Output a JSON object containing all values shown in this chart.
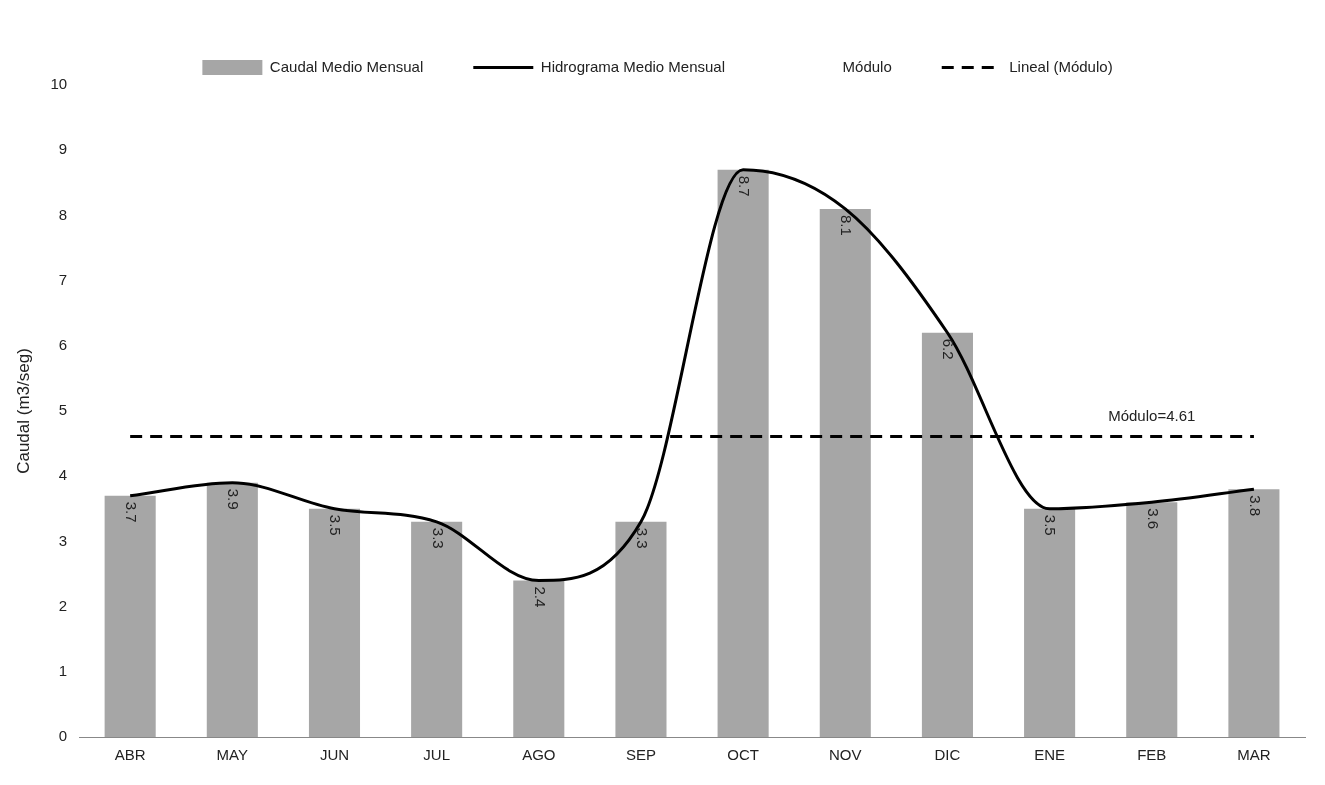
{
  "chart_data": {
    "type": "bar",
    "ylabel": "Caudal (m3/seg)",
    "categories": [
      "ABR",
      "MAY",
      "JUN",
      "JUL",
      "AGO",
      "SEP",
      "OCT",
      "NOV",
      "DIC",
      "ENE",
      "FEB",
      "MAR"
    ],
    "series": [
      {
        "name": "Caudal Medio Mensual",
        "color": "#a6a6a6",
        "values": [
          3.7,
          3.9,
          3.5,
          3.3,
          2.4,
          3.3,
          8.7,
          8.1,
          6.2,
          3.5,
          3.6,
          3.8
        ],
        "value_labels": [
          "3.7",
          "3.9",
          "3.5",
          "3.3",
          "2.4",
          "3.3",
          "8.7",
          "8.1",
          "6.2",
          "3.5",
          "3.6",
          "3.8"
        ]
      },
      {
        "name": "Hidrograma Medio Mensual",
        "type": "line",
        "color": "#000000",
        "line_style": "solid",
        "values": [
          3.7,
          3.9,
          3.5,
          3.3,
          2.4,
          3.3,
          8.7,
          8.1,
          6.2,
          3.5,
          3.6,
          3.8
        ]
      },
      {
        "name": "Lineal (Módulo)",
        "type": "line",
        "color": "#000000",
        "line_style": "dashed",
        "values": [
          4.61,
          4.61,
          4.61,
          4.61,
          4.61,
          4.61,
          4.61,
          4.61,
          4.61,
          4.61,
          4.61,
          4.61
        ]
      }
    ],
    "annotations": [
      "Módulo",
      {
        "text": "Módulo=4.61",
        "x": "FEB",
        "y": 4.61
      }
    ],
    "ylim": [
      0,
      10
    ],
    "yticks": [
      0,
      1,
      2,
      3,
      4,
      5,
      6,
      7,
      8,
      9,
      10
    ],
    "grid": false,
    "legend": "top",
    "marker": "none"
  }
}
